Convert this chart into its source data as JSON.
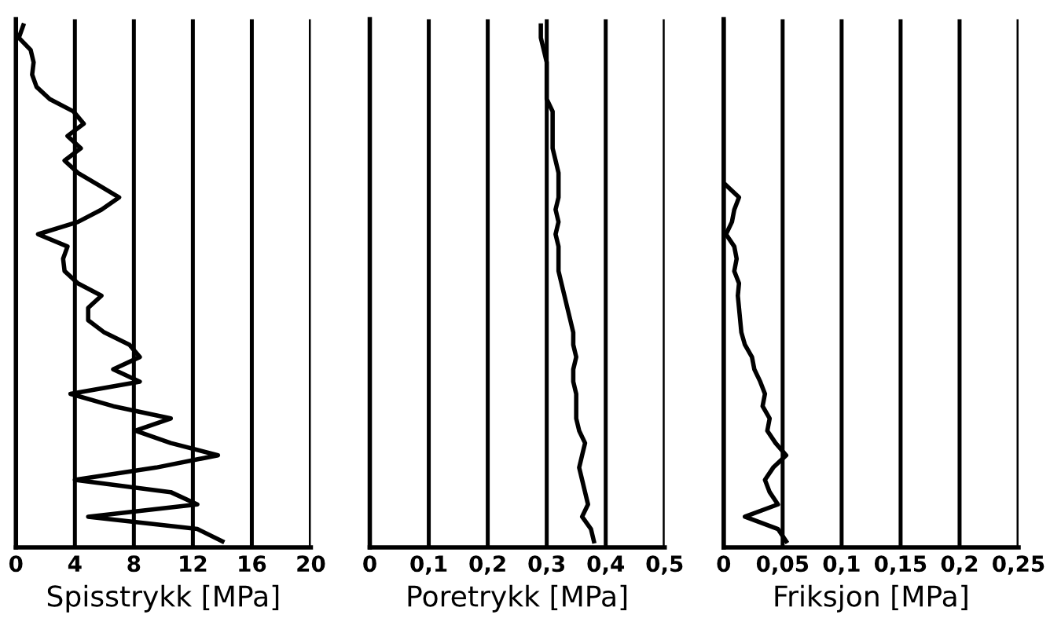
{
  "chart_data": [
    {
      "type": "line",
      "orientation": "horizontal",
      "xlabel": "Spisstrykk [MPa]",
      "categories": [
        null,
        null,
        null,
        null,
        null,
        null,
        null,
        null,
        null,
        null,
        null,
        null,
        null,
        null,
        null,
        null,
        null,
        null,
        null,
        null,
        null,
        null,
        null,
        null,
        null,
        null,
        null,
        null,
        null,
        null,
        null,
        null,
        null,
        null,
        null,
        null,
        null,
        null,
        null,
        null,
        null,
        null,
        null
      ],
      "series": [
        {
          "color": "#000000",
          "values": [
            0.5,
            0.2,
            1.0,
            1.2,
            1.1,
            1.4,
            2.3,
            3.9,
            4.6,
            3.5,
            4.4,
            3.3,
            4.2,
            5.6,
            7.0,
            5.8,
            4.2,
            1.5,
            3.5,
            3.2,
            3.3,
            4.2,
            5.8,
            4.9,
            4.9,
            6.0,
            7.7,
            8.4,
            6.6,
            8.4,
            3.7,
            6.6,
            10.5,
            8.1,
            10.5,
            13.7,
            9.5,
            4.0,
            10.5,
            12.3,
            4.9,
            12.3,
            14.0
          ]
        }
      ],
      "xlim": [
        0,
        20
      ],
      "xticks": [
        0,
        4,
        8,
        12,
        16,
        20
      ],
      "grid": "x",
      "tick_labels": "x",
      "legend": false
    },
    {
      "type": "line",
      "orientation": "horizontal",
      "xlabel": "Poretrykk [MPa]",
      "categories": [
        null,
        null,
        null,
        null,
        null,
        null,
        null,
        null,
        null,
        null,
        null,
        null,
        null,
        null,
        null,
        null,
        null,
        null,
        null,
        null,
        null,
        null,
        null,
        null,
        null,
        null,
        null,
        null,
        null,
        null,
        null,
        null,
        null,
        null,
        null,
        null,
        null,
        null,
        null,
        null,
        null,
        null,
        null
      ],
      "series": [
        {
          "color": "#000000",
          "values": [
            0.29,
            0.29,
            0.295,
            0.3,
            0.3,
            0.3,
            0.3,
            0.31,
            0.31,
            0.31,
            0.31,
            0.315,
            0.32,
            0.32,
            0.32,
            0.315,
            0.32,
            0.315,
            0.32,
            0.32,
            0.32,
            0.325,
            0.33,
            0.335,
            0.34,
            0.345,
            0.345,
            0.35,
            0.345,
            0.345,
            0.35,
            0.35,
            0.35,
            0.355,
            0.365,
            0.36,
            0.355,
            0.36,
            0.365,
            0.37,
            0.36,
            0.375,
            0.38
          ]
        }
      ],
      "xlim": [
        0,
        0.5
      ],
      "xticks": [
        0,
        {
          "value": 0.1,
          "label": "0,1"
        },
        {
          "value": 0.2,
          "label": "0,2"
        },
        {
          "value": 0.3,
          "label": "0,3"
        },
        {
          "value": 0.4,
          "label": "0,4"
        },
        {
          "value": 0.5,
          "label": "0,5"
        }
      ],
      "grid": "x",
      "tick_labels": "x",
      "legend": false
    },
    {
      "type": "line",
      "orientation": "horizontal",
      "xlabel": "Friksjon [MPa]",
      "categories": [
        null,
        null,
        null,
        null,
        null,
        null,
        null,
        null,
        null,
        null,
        null,
        null,
        null,
        null,
        null,
        null,
        null,
        null,
        null,
        null,
        null,
        null,
        null,
        null,
        null,
        null,
        null,
        null,
        null,
        null,
        null,
        null,
        null,
        null,
        null,
        null,
        null,
        null,
        null,
        null,
        null,
        null,
        null
      ],
      "series": [
        {
          "color": "#000000",
          "values": [
            null,
            null,
            null,
            null,
            null,
            null,
            null,
            null,
            null,
            null,
            null,
            null,
            null,
            0.002,
            0.013,
            0.009,
            0.007,
            0.002,
            0.009,
            0.011,
            0.009,
            0.013,
            0.012,
            0.013,
            0.014,
            0.015,
            0.018,
            0.024,
            0.026,
            0.031,
            0.035,
            0.033,
            0.039,
            0.037,
            0.044,
            0.053,
            0.042,
            0.035,
            0.039,
            0.046,
            0.018,
            0.046,
            0.053
          ]
        }
      ],
      "xlim": [
        0,
        0.25
      ],
      "xticks": [
        0,
        {
          "value": 0.05,
          "label": "0,05"
        },
        {
          "value": 0.1,
          "label": "0,1"
        },
        {
          "value": 0.15,
          "label": "0,15"
        },
        {
          "value": 0.2,
          "label": "0,2"
        },
        {
          "value": 0.25,
          "label": "0,25"
        }
      ],
      "grid": "x",
      "tick_labels": "x",
      "legend": false
    }
  ]
}
